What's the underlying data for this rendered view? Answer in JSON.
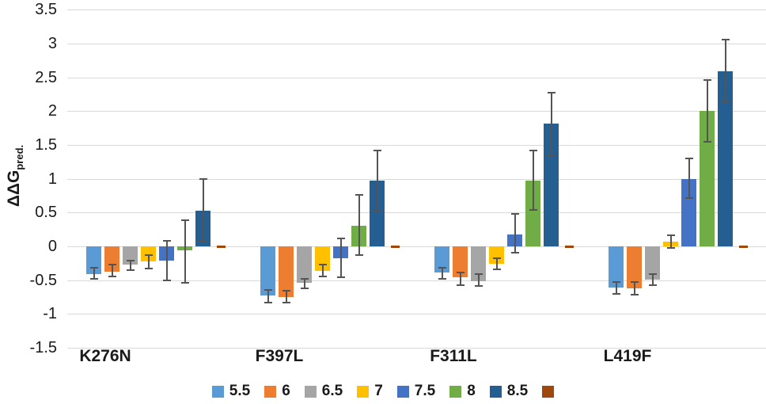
{
  "colors": {
    "background": "#FFFFFF",
    "gridline": "#D9D9D9",
    "error_bar": "#545454",
    "text": "#1A1A1A"
  },
  "chart_data": {
    "type": "bar",
    "title": "",
    "ylabel_main": "ΔΔG",
    "ylabel_sub": "pred.",
    "ylim": [
      -1.5,
      3.5
    ],
    "ytick_step": 0.5,
    "yticks": [
      "3.5",
      "3",
      "2.5",
      "2",
      "1.5",
      "1",
      "0.5",
      "0",
      "-0.5",
      "-1",
      "-1.5"
    ],
    "grid": true,
    "legend_position": "bottom",
    "categories": [
      "K276N",
      "F397L",
      "F311L",
      "L419F"
    ],
    "series": [
      {
        "name": "5.5",
        "color": "#5B9BD5",
        "values": [
          -0.41,
          -0.73,
          -0.39,
          -0.61
        ],
        "err_hi": [
          -0.32,
          -0.64,
          -0.31,
          -0.53
        ],
        "err_lo": [
          -0.48,
          -0.83,
          -0.48,
          -0.7
        ]
      },
      {
        "name": "6",
        "color": "#ED7D31",
        "values": [
          -0.37,
          -0.75,
          -0.46,
          -0.62
        ],
        "err_hi": [
          -0.27,
          -0.66,
          -0.38,
          -0.53
        ],
        "err_lo": [
          -0.44,
          -0.83,
          -0.57,
          -0.71
        ]
      },
      {
        "name": "6.5",
        "color": "#A5A5A5",
        "values": [
          -0.27,
          -0.54,
          -0.51,
          -0.49
        ],
        "err_hi": [
          -0.21,
          -0.48,
          -0.41,
          -0.41
        ],
        "err_lo": [
          -0.35,
          -0.62,
          -0.59,
          -0.57
        ]
      },
      {
        "name": "7",
        "color": "#FFC000",
        "values": [
          -0.22,
          -0.36,
          -0.26,
          0.07
        ],
        "err_hi": [
          -0.13,
          -0.27,
          -0.17,
          0.16
        ],
        "err_lo": [
          -0.33,
          -0.45,
          -0.34,
          -0.02
        ]
      },
      {
        "name": "7.5",
        "color": "#4472C4",
        "values": [
          -0.21,
          -0.17,
          0.18,
          1.0
        ],
        "err_hi": [
          0.08,
          0.12,
          0.48,
          1.3
        ],
        "err_lo": [
          -0.5,
          -0.46,
          -0.09,
          0.72
        ]
      },
      {
        "name": "8",
        "color": "#70AD47",
        "values": [
          -0.06,
          0.31,
          0.97,
          2.0
        ],
        "err_hi": [
          0.39,
          0.76,
          1.42,
          2.46
        ],
        "err_lo": [
          -0.54,
          -0.13,
          0.54,
          1.55
        ]
      },
      {
        "name": "8.5",
        "color": "#255E91",
        "values": [
          0.53,
          0.97,
          1.82,
          2.59
        ],
        "err_hi": [
          1.0,
          1.42,
          2.27,
          3.06
        ],
        "err_lo": [
          0.07,
          0.52,
          1.35,
          2.13
        ]
      },
      {
        "name": "",
        "color": "#9E480E",
        "values": [
          0,
          0,
          0,
          0
        ],
        "err_hi": null,
        "err_lo": null
      }
    ]
  }
}
